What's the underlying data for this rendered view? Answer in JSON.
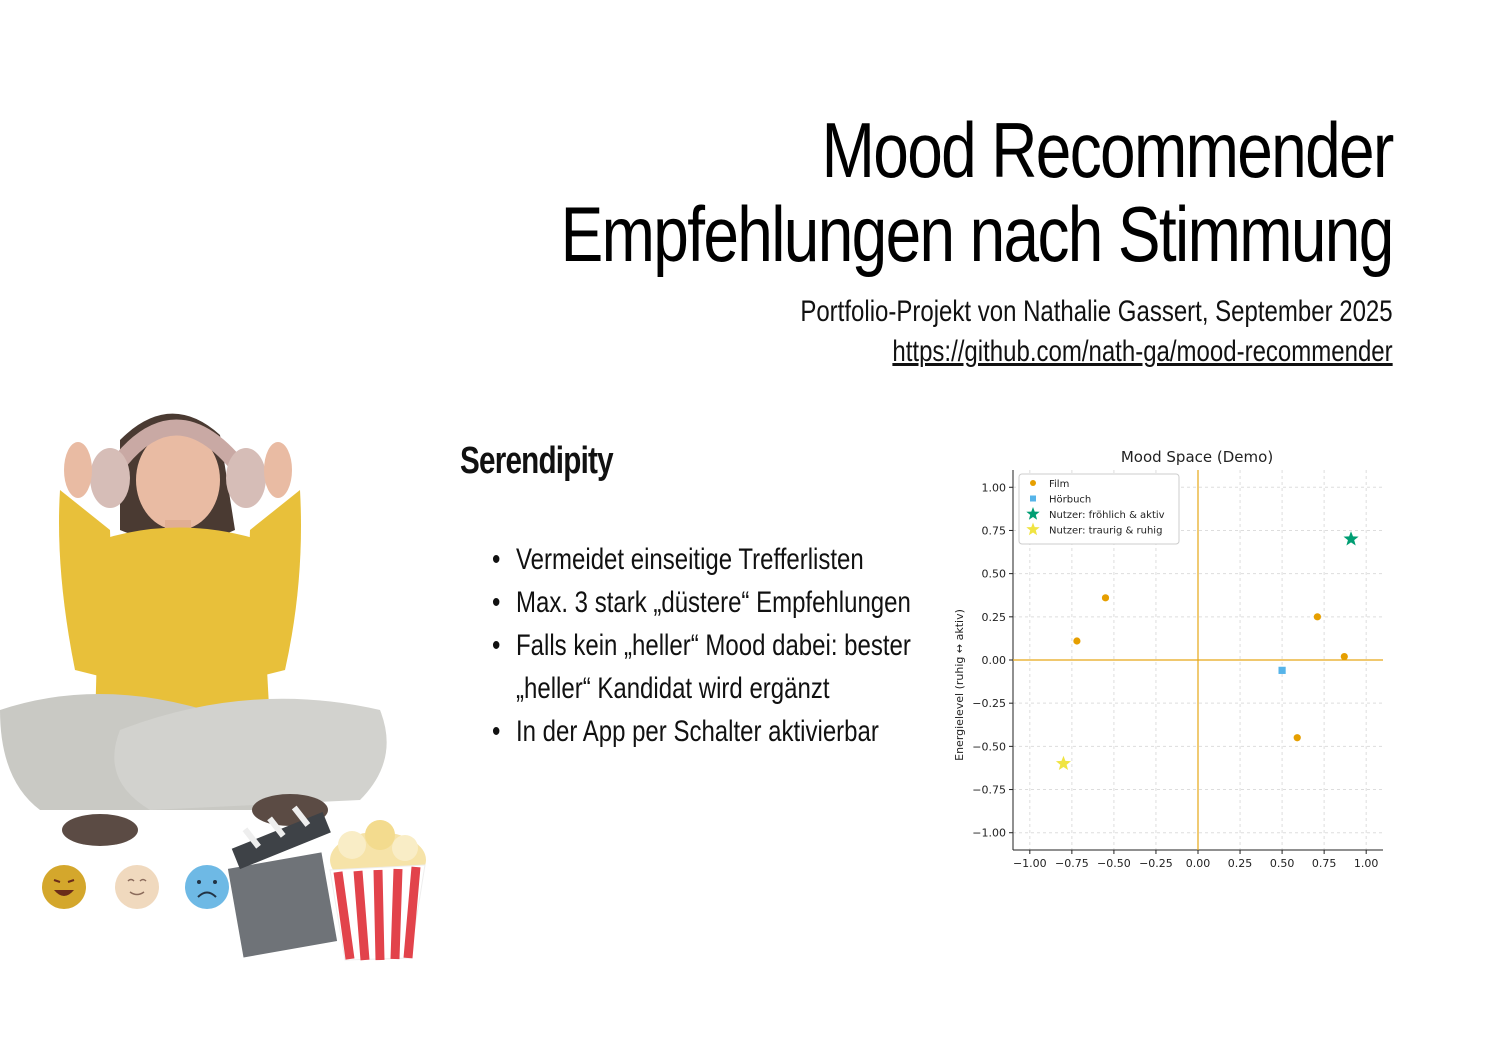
{
  "title": {
    "line1": "Mood Recommender",
    "line2": "Empfehlungen nach Stimmung",
    "subtitle": "Portfolio-Projekt von Nathalie Gassert, September 2025",
    "link": "https://github.com/nath-ga/mood-recommender"
  },
  "section": {
    "heading": "Serendipity",
    "bullets": [
      "Vermeidet einseitige Trefferlisten",
      "Max. 3 stark „düstere“ Empfehlungen",
      "Falls kein „heller“ Mood dabei: bester „heller“ Kandidat wird ergänzt",
      "In der App per Schalter aktivierbar"
    ]
  },
  "chart_data": {
    "type": "scatter",
    "title": "Mood Space (Demo)",
    "ylabel": "Energielevel   (ruhig   ↔   aktiv)",
    "xlim": [
      -1.1,
      1.1
    ],
    "ylim": [
      -1.1,
      1.1
    ],
    "xticks": [
      -1.0,
      -0.75,
      -0.5,
      -0.25,
      0.0,
      0.25,
      0.5,
      0.75,
      1.0
    ],
    "yticks": [
      -1.0,
      -0.75,
      -0.5,
      -0.25,
      0.0,
      0.25,
      0.5,
      0.75,
      1.0
    ],
    "xtick_labels": [
      "−1.00",
      "−0.75",
      "−0.50",
      "−0.25",
      "0.00",
      "0.25",
      "0.50",
      "0.75",
      "1.00"
    ],
    "ytick_labels": [
      "−1.00",
      "−0.75",
      "−0.50",
      "−0.25",
      "0.00",
      "0.25",
      "0.50",
      "0.75",
      "1.00"
    ],
    "grid": true,
    "legend_position": "top-left",
    "series": [
      {
        "name": "Film",
        "marker": "circle",
        "color": "#E69F00",
        "points": [
          [
            -0.72,
            0.11
          ],
          [
            -0.55,
            0.36
          ],
          [
            0.71,
            0.25
          ],
          [
            0.87,
            0.02
          ],
          [
            0.59,
            -0.45
          ]
        ]
      },
      {
        "name": "Hörbuch",
        "marker": "square",
        "color": "#56B4E9",
        "points": [
          [
            0.5,
            -0.06
          ]
        ]
      },
      {
        "name": "Nutzer: fröhlich & aktiv",
        "marker": "star",
        "color": "#009E73",
        "points": [
          [
            0.91,
            0.7
          ]
        ]
      },
      {
        "name": "Nutzer: traurig & ruhig",
        "marker": "star",
        "color": "#F0E442",
        "points": [
          [
            -0.8,
            -0.6
          ]
        ]
      }
    ],
    "reference_lines": {
      "x": 0,
      "y": 0,
      "color": "#E6A817"
    }
  },
  "illustration": {
    "shirt_color": "#E8C03A",
    "pants_color": "#C9C9C4",
    "hair_color": "#4A3A32",
    "skin_color": "#E9BBA3"
  }
}
